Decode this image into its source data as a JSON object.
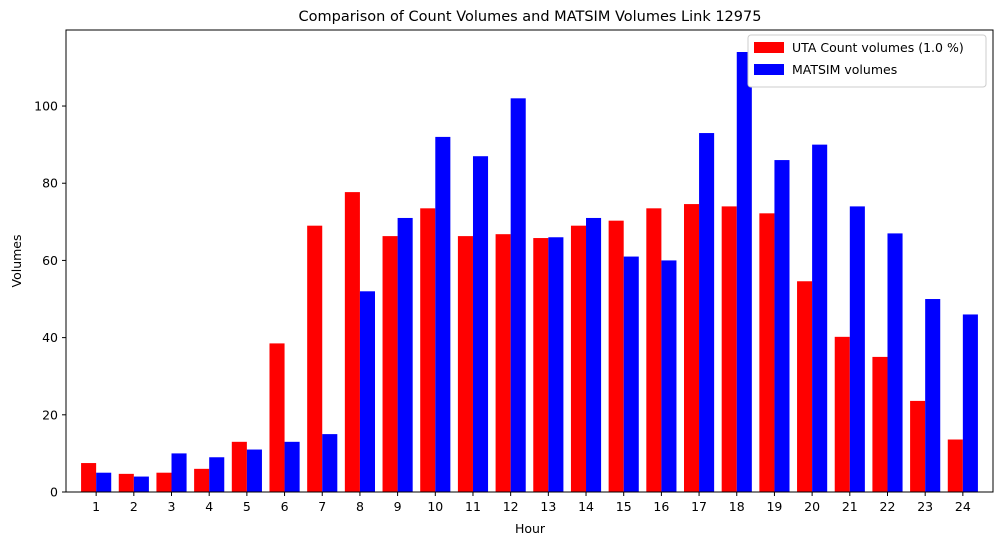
{
  "chart_data": {
    "type": "bar",
    "title": "Comparison of Count Volumes and MATSIM Volumes Link 12975",
    "xlabel": "Hour",
    "ylabel": "Volumes",
    "categories": [
      "1",
      "2",
      "3",
      "4",
      "5",
      "6",
      "7",
      "8",
      "9",
      "10",
      "11",
      "12",
      "13",
      "14",
      "15",
      "16",
      "17",
      "18",
      "19",
      "20",
      "21",
      "22",
      "23",
      "24"
    ],
    "series": [
      {
        "name": "UTA Count volumes (1.0 %)",
        "color": "#ff0000",
        "values": [
          7.5,
          4.7,
          5.0,
          6.0,
          13.0,
          38.5,
          69.0,
          77.7,
          66.3,
          73.5,
          66.3,
          66.8,
          65.8,
          69.0,
          70.3,
          73.5,
          74.6,
          74.0,
          72.2,
          54.6,
          40.2,
          35.0,
          23.6,
          13.6
        ]
      },
      {
        "name": "MATSIM volumes",
        "color": "#0000ff",
        "values": [
          5,
          4,
          10,
          9,
          11,
          13,
          15,
          52,
          71,
          92,
          87,
          102,
          66,
          71,
          61,
          60,
          93,
          114,
          86,
          90,
          74,
          67,
          50,
          46
        ]
      }
    ],
    "ylim": [
      0,
      119.7
    ],
    "yticks": [
      0,
      20,
      40,
      60,
      80,
      100
    ],
    "legend_position": "top-right",
    "grid": false
  }
}
